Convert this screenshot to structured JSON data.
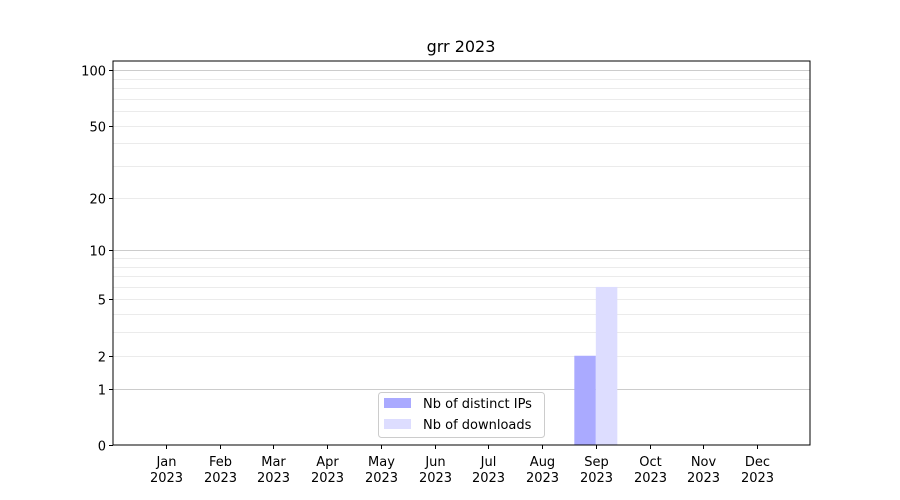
{
  "chart_data": {
    "type": "bar",
    "title": "grr 2023",
    "xlabel": "",
    "ylabel": "",
    "yscale": "log(1+y)",
    "ylim": [
      0,
      112
    ],
    "grid": "horizontal major and minor",
    "legend_position": "bottom-center",
    "categories": [
      "Jan\n2023",
      "Feb\n2023",
      "Mar\n2023",
      "Apr\n2023",
      "May\n2023",
      "Jun\n2023",
      "Jul\n2023",
      "Aug\n2023",
      "Sep\n2023",
      "Oct\n2023",
      "Nov\n2023",
      "Dec\n2023"
    ],
    "ytick_values": [
      0,
      1,
      2,
      5,
      10,
      20,
      50,
      100
    ],
    "ytick_labels": [
      "0",
      "1",
      "2",
      "5",
      "10",
      "20",
      "50",
      "100"
    ],
    "series": [
      {
        "name": "Nb of distinct IPs",
        "color": "#aaaaff",
        "values": [
          0,
          0,
          0,
          0,
          0,
          0,
          0,
          0,
          2,
          0,
          0,
          0
        ]
      },
      {
        "name": "Nb of downloads",
        "color": "#ddddff",
        "values": [
          0,
          0,
          0,
          0,
          0,
          0,
          0,
          0,
          6,
          0,
          0,
          0
        ]
      }
    ]
  }
}
